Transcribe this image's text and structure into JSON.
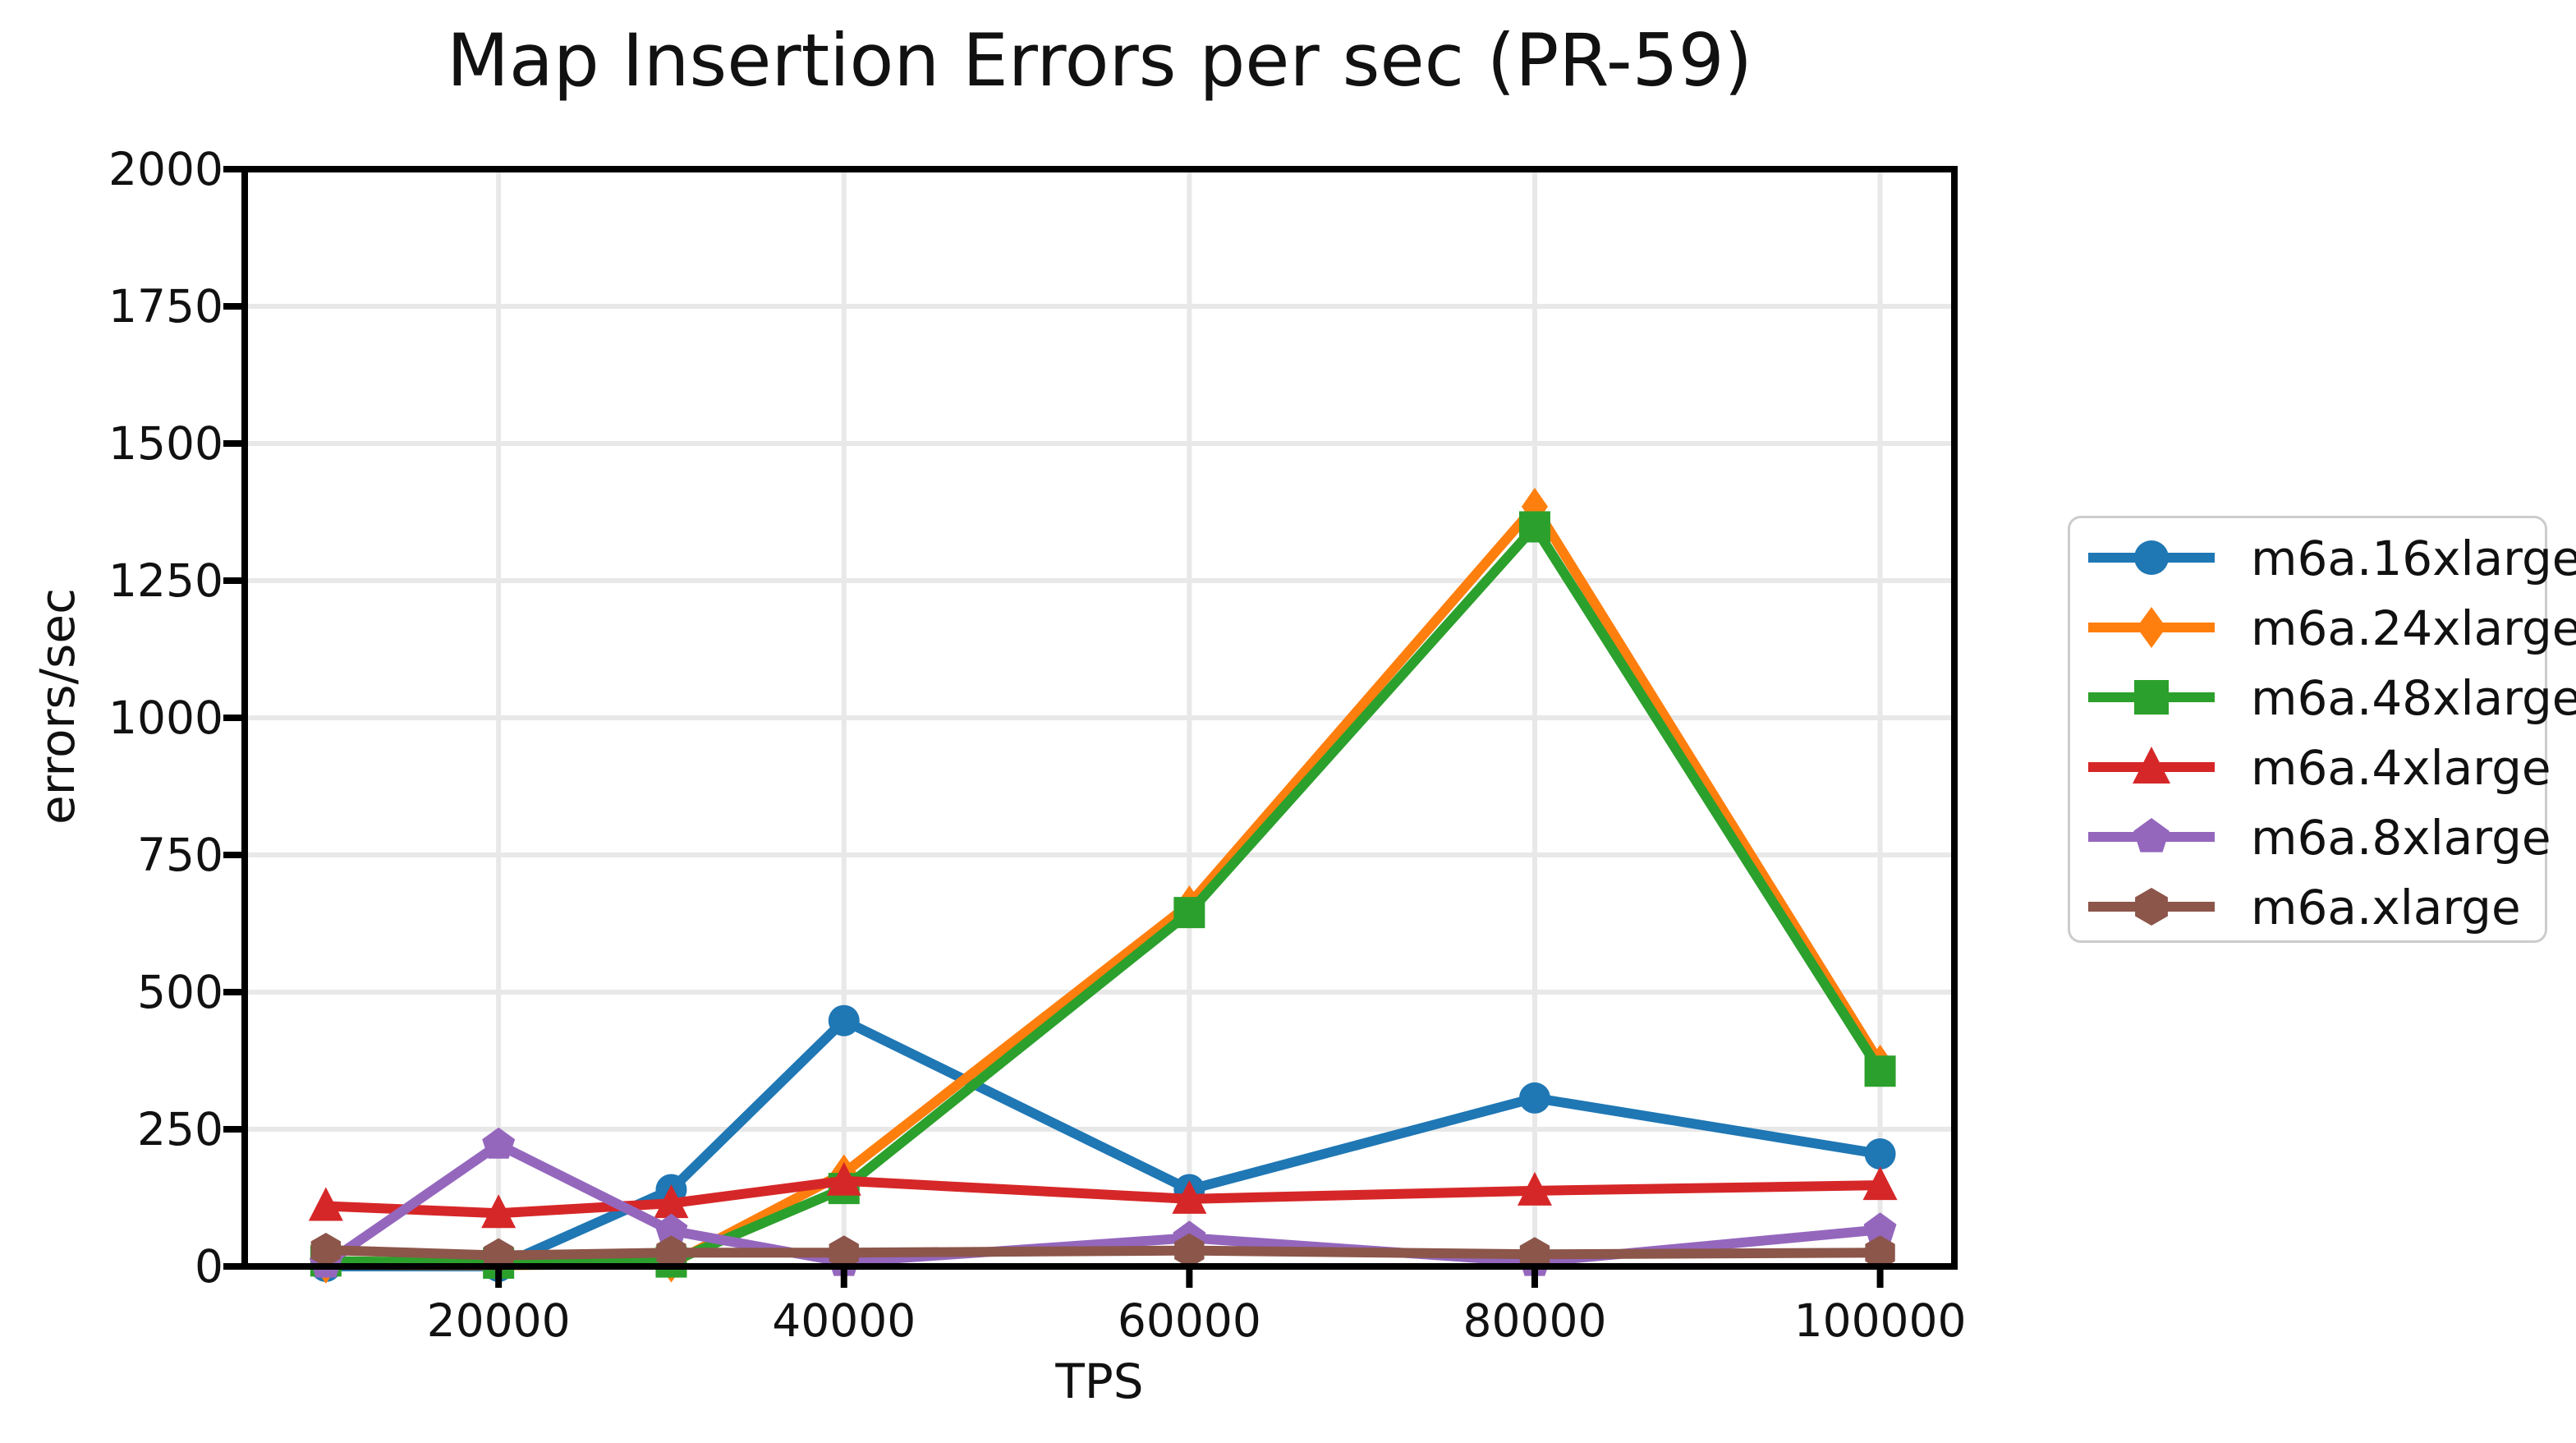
{
  "chart_data": {
    "type": "line",
    "title": "Map Insertion Errors per sec (PR-59)",
    "xlabel": "TPS",
    "ylabel": "errors/sec",
    "x": [
      10000,
      20000,
      30000,
      40000,
      60000,
      80000,
      100000
    ],
    "x_ticks": [
      20000,
      40000,
      60000,
      80000,
      100000
    ],
    "x_tick_labels": [
      "20000",
      "40000",
      "60000",
      "80000",
      "100000"
    ],
    "y_ticks": [
      0,
      250,
      500,
      750,
      1000,
      1250,
      1500,
      1750,
      2000
    ],
    "y_tick_labels": [
      "0",
      "250",
      "500",
      "750",
      "1000",
      "1250",
      "1500",
      "1750",
      "2000"
    ],
    "xlim": [
      5300,
      104300
    ],
    "ylim": [
      0,
      2000
    ],
    "grid": true,
    "legend_position": "right",
    "colors": {
      "grid": "#e8e8e8",
      "axis": "#000000",
      "text": "#111111",
      "legend_border": "#cccccc"
    },
    "series": [
      {
        "name": "m6a.16xlarge",
        "color": "#1f77b4",
        "marker": "circle",
        "values": [
          0,
          0,
          140,
          448,
          140,
          307,
          205
        ]
      },
      {
        "name": "m6a.24xlarge",
        "color": "#ff7f0e",
        "marker": "diamond",
        "values": [
          3,
          2,
          5,
          170,
          660,
          1385,
          370
        ]
      },
      {
        "name": "m6a.48xlarge",
        "color": "#2ca02c",
        "marker": "square",
        "values": [
          10,
          6,
          8,
          142,
          645,
          1348,
          356
        ]
      },
      {
        "name": "m6a.4xlarge",
        "color": "#d62728",
        "marker": "triangle-up",
        "values": [
          110,
          97,
          115,
          156,
          123,
          138,
          148
        ]
      },
      {
        "name": "m6a.8xlarge",
        "color": "#9467bd",
        "marker": "pentagon",
        "values": [
          5,
          222,
          65,
          8,
          52,
          8,
          67
        ]
      },
      {
        "name": "m6a.xlarge",
        "color": "#8c564b",
        "marker": "hexagon",
        "values": [
          30,
          20,
          25,
          25,
          29,
          22,
          25
        ]
      }
    ]
  }
}
